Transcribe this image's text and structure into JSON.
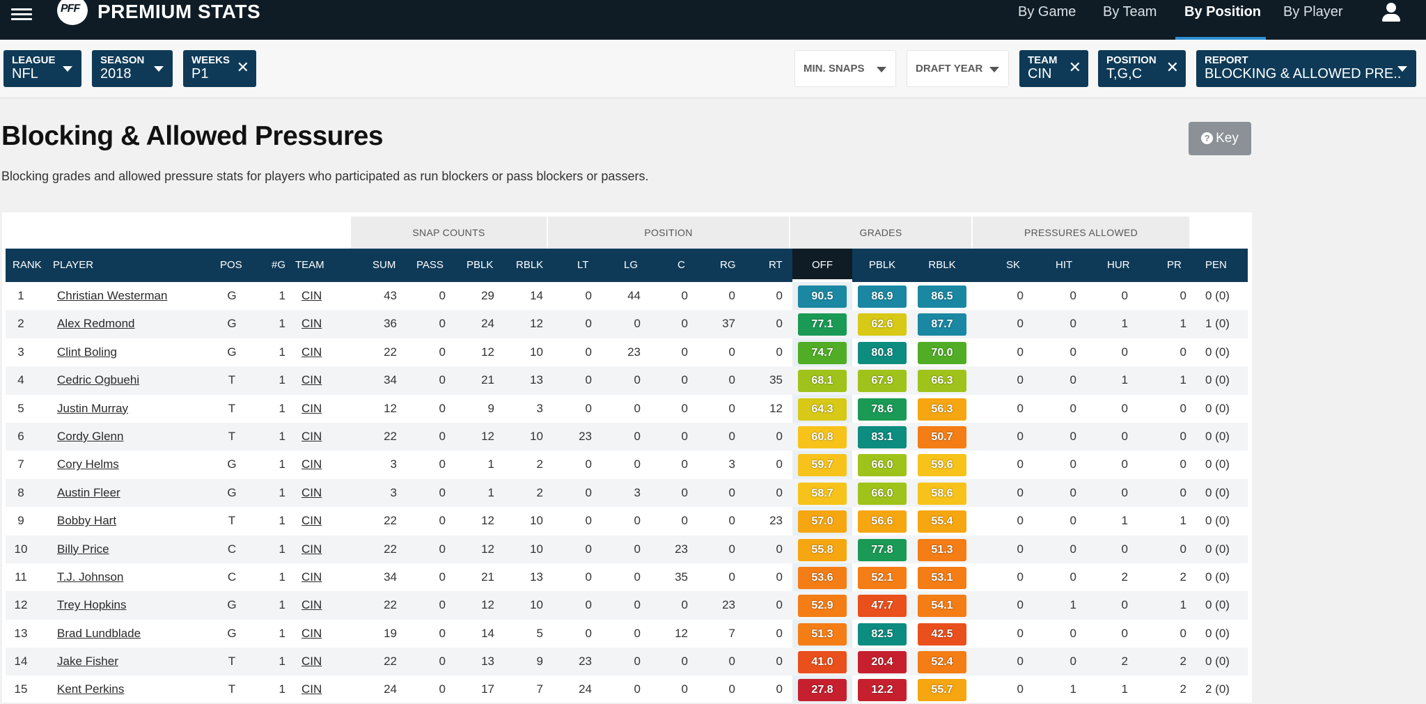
{
  "nav": {
    "brand": "PREMIUM STATS",
    "logo_text": "PFF",
    "links": [
      "By Game",
      "By Team",
      "By Position",
      "By Player"
    ],
    "active": "By Position"
  },
  "filters": {
    "league": {
      "label": "LEAGUE",
      "value": "NFL"
    },
    "season": {
      "label": "SEASON",
      "value": "2018"
    },
    "weeks": {
      "label": "WEEKS",
      "value": "P1"
    },
    "min_snaps": {
      "label": "MIN. SNAPS"
    },
    "draft_year": {
      "label": "DRAFT YEAR"
    },
    "team": {
      "label": "TEAM",
      "value": "CIN"
    },
    "position": {
      "label": "POSITION",
      "value": "T,G,C"
    },
    "report": {
      "label": "REPORT",
      "value": "BLOCKING & ALLOWED PRE.."
    }
  },
  "page": {
    "title": "Blocking & Allowed Pressures",
    "subtitle": "Blocking grades and allowed pressure stats for players who participated as run blockers or pass blockers or passers.",
    "key_label": "Key"
  },
  "table": {
    "groups": [
      "SNAP COUNTS",
      "POSITION",
      "GRADES",
      "PRESSURES ALLOWED"
    ],
    "columns": [
      "RANK",
      "PLAYER",
      "POS",
      "#G",
      "TEAM",
      "SUM",
      "PASS",
      "PBLK",
      "RBLK",
      "LT",
      "LG",
      "C",
      "RG",
      "RT",
      "OFF",
      "PBLK",
      "RBLK",
      "SK",
      "HIT",
      "HUR",
      "PR",
      "PEN"
    ],
    "rows": [
      [
        "1",
        "Christian Westerman",
        "G",
        "1",
        "CIN",
        "43",
        "0",
        "29",
        "14",
        "0",
        "44",
        "0",
        "0",
        "0",
        "90.5",
        "86.9",
        "86.5",
        "0",
        "0",
        "0",
        "0",
        "0 (0)"
      ],
      [
        "2",
        "Alex Redmond",
        "G",
        "1",
        "CIN",
        "36",
        "0",
        "24",
        "12",
        "0",
        "0",
        "0",
        "37",
        "0",
        "77.1",
        "62.6",
        "87.7",
        "0",
        "0",
        "1",
        "1",
        "1 (0)"
      ],
      [
        "3",
        "Clint Boling",
        "G",
        "1",
        "CIN",
        "22",
        "0",
        "12",
        "10",
        "0",
        "23",
        "0",
        "0",
        "0",
        "74.7",
        "80.8",
        "70.0",
        "0",
        "0",
        "0",
        "0",
        "0 (0)"
      ],
      [
        "4",
        "Cedric Ogbuehi",
        "T",
        "1",
        "CIN",
        "34",
        "0",
        "21",
        "13",
        "0",
        "0",
        "0",
        "0",
        "35",
        "68.1",
        "67.9",
        "66.3",
        "0",
        "0",
        "1",
        "1",
        "0 (0)"
      ],
      [
        "5",
        "Justin Murray",
        "T",
        "1",
        "CIN",
        "12",
        "0",
        "9",
        "3",
        "0",
        "0",
        "0",
        "0",
        "12",
        "64.3",
        "78.6",
        "56.3",
        "0",
        "0",
        "0",
        "0",
        "0 (0)"
      ],
      [
        "6",
        "Cordy Glenn",
        "T",
        "1",
        "CIN",
        "22",
        "0",
        "12",
        "10",
        "23",
        "0",
        "0",
        "0",
        "0",
        "60.8",
        "83.1",
        "50.7",
        "0",
        "0",
        "0",
        "0",
        "0 (0)"
      ],
      [
        "7",
        "Cory Helms",
        "G",
        "1",
        "CIN",
        "3",
        "0",
        "1",
        "2",
        "0",
        "0",
        "0",
        "3",
        "0",
        "59.7",
        "66.0",
        "59.6",
        "0",
        "0",
        "0",
        "0",
        "0 (0)"
      ],
      [
        "8",
        "Austin Fleer",
        "G",
        "1",
        "CIN",
        "3",
        "0",
        "1",
        "2",
        "0",
        "3",
        "0",
        "0",
        "0",
        "58.7",
        "66.0",
        "58.6",
        "0",
        "0",
        "0",
        "0",
        "0 (0)"
      ],
      [
        "9",
        "Bobby Hart",
        "T",
        "1",
        "CIN",
        "22",
        "0",
        "12",
        "10",
        "0",
        "0",
        "0",
        "0",
        "23",
        "57.0",
        "56.6",
        "55.4",
        "0",
        "0",
        "1",
        "1",
        "0 (0)"
      ],
      [
        "10",
        "Billy Price",
        "C",
        "1",
        "CIN",
        "22",
        "0",
        "12",
        "10",
        "0",
        "0",
        "23",
        "0",
        "0",
        "55.8",
        "77.8",
        "51.3",
        "0",
        "0",
        "0",
        "0",
        "0 (0)"
      ],
      [
        "11",
        "T.J. Johnson",
        "C",
        "1",
        "CIN",
        "34",
        "0",
        "21",
        "13",
        "0",
        "0",
        "35",
        "0",
        "0",
        "53.6",
        "52.1",
        "53.1",
        "0",
        "0",
        "2",
        "2",
        "0 (0)"
      ],
      [
        "12",
        "Trey Hopkins",
        "G",
        "1",
        "CIN",
        "22",
        "0",
        "12",
        "10",
        "0",
        "0",
        "0",
        "23",
        "0",
        "52.9",
        "47.7",
        "54.1",
        "0",
        "1",
        "0",
        "1",
        "0 (0)"
      ],
      [
        "13",
        "Brad Lundblade",
        "G",
        "1",
        "CIN",
        "19",
        "0",
        "14",
        "5",
        "0",
        "0",
        "12",
        "7",
        "0",
        "51.3",
        "82.5",
        "42.5",
        "0",
        "0",
        "0",
        "0",
        "0 (0)"
      ],
      [
        "14",
        "Jake Fisher",
        "T",
        "1",
        "CIN",
        "22",
        "0",
        "13",
        "9",
        "23",
        "0",
        "0",
        "0",
        "0",
        "41.0",
        "20.4",
        "52.4",
        "0",
        "0",
        "2",
        "2",
        "0 (0)"
      ],
      [
        "15",
        "Kent Perkins",
        "T",
        "1",
        "CIN",
        "24",
        "0",
        "17",
        "7",
        "24",
        "0",
        "0",
        "0",
        "0",
        "27.8",
        "12.2",
        "55.7",
        "0",
        "1",
        "1",
        "2",
        "2 (0)"
      ]
    ]
  },
  "colors": {
    "nav_bg": "#0f1c26",
    "chip_bg": "#0e3a57",
    "header_bg": "#0e3a57",
    "active_underline": "#2f8fd0",
    "grade_scale": [
      "#c6202e",
      "#e9501c",
      "#f47d15",
      "#f6a611",
      "#f7c31a",
      "#d7c915",
      "#9fc31b",
      "#50ad25",
      "#1a9a55",
      "#0d8c80",
      "#1a87a3"
    ]
  }
}
